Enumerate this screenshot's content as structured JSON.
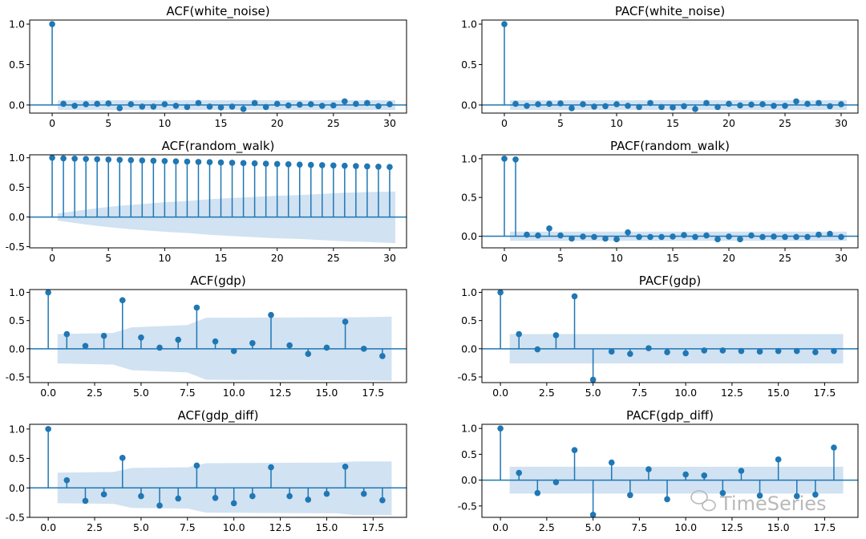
{
  "colors": {
    "stem": "#1f77b4",
    "band": "#c6dbef",
    "axis": "#000000",
    "watermark": "#b9b9b9"
  },
  "watermark": {
    "text": "TimeSeries",
    "icon": "wechat-icon"
  },
  "chart_data": [
    {
      "type": "stem",
      "title": "ACF(white_noise)",
      "xlim": [
        -2,
        31.5
      ],
      "ylim": [
        -0.1,
        1.05
      ],
      "xticks": [
        0,
        5,
        10,
        15,
        20,
        25,
        30
      ],
      "xtick_labels": [
        "0",
        "5",
        "10",
        "15",
        "20",
        "25",
        "30"
      ],
      "yticks": [
        0.0,
        0.5,
        1.0
      ],
      "ytick_labels": [
        "0.0",
        "0.5",
        "1.0"
      ],
      "x": [
        0,
        1,
        2,
        3,
        4,
        5,
        6,
        7,
        8,
        9,
        10,
        11,
        12,
        13,
        14,
        15,
        16,
        17,
        18,
        19,
        20,
        21,
        22,
        23,
        24,
        25,
        26,
        27,
        28,
        29,
        30
      ],
      "values": [
        1.0,
        0.015,
        -0.01,
        0.01,
        0.015,
        0.02,
        -0.04,
        0.01,
        -0.02,
        -0.02,
        0.01,
        -0.01,
        -0.025,
        0.025,
        -0.02,
        -0.03,
        -0.02,
        -0.05,
        0.025,
        -0.025,
        0.015,
        -0.005,
        0.005,
        0.01,
        -0.01,
        -0.005,
        0.045,
        0.015,
        0.025,
        -0.015,
        0.01
      ],
      "band_x": [
        0.5,
        30.5
      ],
      "band_upper": [
        0.06,
        0.06
      ],
      "band_lower": [
        -0.06,
        -0.06
      ]
    },
    {
      "type": "stem",
      "title": "PACF(white_noise)",
      "xlim": [
        -2,
        31.5
      ],
      "ylim": [
        -0.1,
        1.05
      ],
      "xticks": [
        0,
        5,
        10,
        15,
        20,
        25,
        30
      ],
      "xtick_labels": [
        "0",
        "5",
        "10",
        "15",
        "20",
        "25",
        "30"
      ],
      "yticks": [
        0.0,
        0.5,
        1.0
      ],
      "ytick_labels": [
        "0.0",
        "0.5",
        "1.0"
      ],
      "x": [
        0,
        1,
        2,
        3,
        4,
        5,
        6,
        7,
        8,
        9,
        10,
        11,
        12,
        13,
        14,
        15,
        16,
        17,
        18,
        19,
        20,
        21,
        22,
        23,
        24,
        25,
        26,
        27,
        28,
        29,
        30
      ],
      "values": [
        1.0,
        0.015,
        -0.01,
        0.01,
        0.015,
        0.02,
        -0.04,
        0.01,
        -0.02,
        -0.015,
        0.01,
        -0.01,
        -0.025,
        0.025,
        -0.025,
        -0.03,
        -0.015,
        -0.05,
        0.025,
        -0.025,
        0.015,
        -0.005,
        0.005,
        0.01,
        -0.01,
        -0.01,
        0.045,
        0.015,
        0.025,
        -0.015,
        0.01
      ],
      "band_x": [
        0.5,
        30.5
      ],
      "band_upper": [
        0.06,
        0.06
      ],
      "band_lower": [
        -0.06,
        -0.06
      ]
    },
    {
      "type": "stem",
      "title": "ACF(random_walk)",
      "xlim": [
        -2,
        31.5
      ],
      "ylim": [
        -0.52,
        1.05
      ],
      "xticks": [
        0,
        5,
        10,
        15,
        20,
        25,
        30
      ],
      "xtick_labels": [
        "0",
        "5",
        "10",
        "15",
        "20",
        "25",
        "30"
      ],
      "yticks": [
        -0.5,
        0.0,
        0.5,
        1.0
      ],
      "ytick_labels": [
        "-0.5",
        "0.0",
        "0.5",
        "1.0"
      ],
      "x": [
        0,
        1,
        2,
        3,
        4,
        5,
        6,
        7,
        8,
        9,
        10,
        11,
        12,
        13,
        14,
        15,
        16,
        17,
        18,
        19,
        20,
        21,
        22,
        23,
        24,
        25,
        26,
        27,
        28,
        29,
        30
      ],
      "values": [
        1.0,
        0.99,
        0.985,
        0.98,
        0.975,
        0.97,
        0.965,
        0.96,
        0.955,
        0.95,
        0.945,
        0.94,
        0.935,
        0.93,
        0.925,
        0.92,
        0.915,
        0.91,
        0.905,
        0.9,
        0.895,
        0.89,
        0.885,
        0.88,
        0.875,
        0.87,
        0.865,
        0.86,
        0.855,
        0.85,
        0.845
      ],
      "band_x": [
        0.5,
        2,
        4,
        6,
        8,
        10,
        12,
        14,
        16,
        18,
        20,
        22,
        24,
        26,
        28,
        30.5
      ],
      "band_upper": [
        0.06,
        0.1,
        0.15,
        0.19,
        0.22,
        0.25,
        0.27,
        0.3,
        0.32,
        0.34,
        0.36,
        0.37,
        0.39,
        0.41,
        0.42,
        0.43
      ],
      "band_lower": [
        -0.06,
        -0.1,
        -0.15,
        -0.19,
        -0.22,
        -0.25,
        -0.27,
        -0.3,
        -0.32,
        -0.34,
        -0.36,
        -0.37,
        -0.39,
        -0.41,
        -0.42,
        -0.44
      ]
    },
    {
      "type": "stem",
      "title": "PACF(random_walk)",
      "xlim": [
        -2,
        31.5
      ],
      "ylim": [
        -0.15,
        1.05
      ],
      "xticks": [
        0,
        5,
        10,
        15,
        20,
        25,
        30
      ],
      "xtick_labels": [
        "0",
        "5",
        "10",
        "15",
        "20",
        "25",
        "30"
      ],
      "yticks": [
        0.0,
        0.5,
        1.0
      ],
      "ytick_labels": [
        "0.0",
        "0.5",
        "1.0"
      ],
      "x": [
        0,
        1,
        2,
        3,
        4,
        5,
        6,
        7,
        8,
        9,
        10,
        11,
        12,
        13,
        14,
        15,
        16,
        17,
        18,
        19,
        20,
        21,
        22,
        23,
        24,
        25,
        26,
        27,
        28,
        29,
        30
      ],
      "values": [
        1.0,
        0.99,
        0.02,
        0.01,
        0.1,
        0.01,
        -0.03,
        -0.005,
        -0.01,
        -0.03,
        -0.04,
        0.05,
        -0.01,
        -0.01,
        -0.01,
        -0.005,
        0.015,
        -0.01,
        0.01,
        -0.04,
        -0.005,
        -0.04,
        0.01,
        -0.01,
        -0.005,
        -0.01,
        -0.01,
        -0.01,
        0.02,
        0.03,
        -0.01
      ],
      "band_x": [
        0.5,
        30.5
      ],
      "band_upper": [
        0.06,
        0.06
      ],
      "band_lower": [
        -0.06,
        -0.06
      ]
    },
    {
      "type": "stem",
      "title": "ACF(gdp)",
      "xlim": [
        -1.0,
        19.3
      ],
      "ylim": [
        -0.6,
        1.05
      ],
      "xticks": [
        0,
        2.5,
        5,
        7.5,
        10,
        12.5,
        15,
        17.5
      ],
      "xtick_labels": [
        "0.0",
        "2.5",
        "5.0",
        "7.5",
        "10.0",
        "12.5",
        "15.0",
        "17.5"
      ],
      "yticks": [
        -0.5,
        0.0,
        0.5,
        1.0
      ],
      "ytick_labels": [
        "-0.5",
        "0.0",
        "0.5",
        "1.0"
      ],
      "x": [
        0,
        1,
        2,
        3,
        4,
        5,
        6,
        7,
        8,
        9,
        10,
        11,
        12,
        13,
        14,
        15,
        16,
        17,
        18
      ],
      "values": [
        1.0,
        0.26,
        0.05,
        0.23,
        0.86,
        0.2,
        0.02,
        0.16,
        0.73,
        0.13,
        -0.04,
        0.1,
        0.6,
        0.06,
        -0.09,
        0.02,
        0.48,
        0.0,
        -0.13
      ],
      "band_x": [
        0.5,
        3.5,
        4.5,
        7.5,
        8.5,
        17,
        18.5
      ],
      "band_upper": [
        0.26,
        0.28,
        0.38,
        0.42,
        0.55,
        0.56,
        0.57
      ],
      "band_lower": [
        -0.26,
        -0.28,
        -0.38,
        -0.42,
        -0.55,
        -0.56,
        -0.57
      ]
    },
    {
      "type": "stem",
      "title": "PACF(gdp)",
      "xlim": [
        -1.0,
        19.3
      ],
      "ylim": [
        -0.6,
        1.05
      ],
      "xticks": [
        0,
        2.5,
        5,
        7.5,
        10,
        12.5,
        15,
        17.5
      ],
      "xtick_labels": [
        "0.0",
        "2.5",
        "5.0",
        "7.5",
        "10.0",
        "12.5",
        "15.0",
        "17.5"
      ],
      "yticks": [
        -0.5,
        0.0,
        0.5,
        1.0
      ],
      "ytick_labels": [
        "-0.5",
        "0.0",
        "0.5",
        "1.0"
      ],
      "x": [
        0,
        1,
        2,
        3,
        4,
        5,
        6,
        7,
        8,
        9,
        10,
        11,
        12,
        13,
        14,
        15,
        16,
        17,
        18
      ],
      "values": [
        1.0,
        0.26,
        -0.01,
        0.24,
        0.93,
        -0.55,
        -0.05,
        -0.09,
        0.01,
        -0.06,
        -0.08,
        -0.03,
        -0.03,
        -0.04,
        -0.05,
        -0.04,
        -0.04,
        -0.06,
        -0.04
      ],
      "band_x": [
        0.5,
        18.5
      ],
      "band_upper": [
        0.26,
        0.26
      ],
      "band_lower": [
        -0.26,
        -0.26
      ]
    },
    {
      "type": "stem",
      "title": "ACF(gdp_diff)",
      "xlim": [
        -1.0,
        19.3
      ],
      "ylim": [
        -0.5,
        1.08
      ],
      "xticks": [
        0,
        2.5,
        5,
        7.5,
        10,
        12.5,
        15,
        17.5
      ],
      "xtick_labels": [
        "0.0",
        "2.5",
        "5.0",
        "7.5",
        "10.0",
        "12.5",
        "15.0",
        "17.5"
      ],
      "yticks": [
        -0.5,
        0.0,
        0.5,
        1.0
      ],
      "ytick_labels": [
        "-0.5",
        "0.0",
        "0.5",
        "1.0"
      ],
      "x": [
        0,
        1,
        2,
        3,
        4,
        5,
        6,
        7,
        8,
        9,
        10,
        11,
        12,
        13,
        14,
        15,
        16,
        17,
        18
      ],
      "values": [
        1.0,
        0.13,
        -0.22,
        -0.11,
        0.51,
        -0.14,
        -0.3,
        -0.18,
        0.38,
        -0.17,
        -0.26,
        -0.14,
        0.35,
        -0.14,
        -0.2,
        -0.1,
        0.36,
        -0.1,
        -0.21
      ],
      "band_x": [
        0.5,
        3.5,
        4.5,
        7.5,
        8.5,
        15.5,
        16.5,
        18.5
      ],
      "band_upper": [
        0.26,
        0.27,
        0.34,
        0.35,
        0.42,
        0.43,
        0.45,
        0.45
      ],
      "band_lower": [
        -0.26,
        -0.27,
        -0.34,
        -0.35,
        -0.42,
        -0.43,
        -0.46,
        -0.46
      ]
    },
    {
      "type": "stem",
      "title": "PACF(gdp_diff)",
      "xlim": [
        -1.0,
        19.3
      ],
      "ylim": [
        -0.72,
        1.08
      ],
      "xticks": [
        0,
        2.5,
        5,
        7.5,
        10,
        12.5,
        15,
        17.5
      ],
      "xtick_labels": [
        "0.0",
        "2.5",
        "5.0",
        "7.5",
        "10.0",
        "12.5",
        "15.0",
        "17.5"
      ],
      "yticks": [
        -0.5,
        0.0,
        0.5,
        1.0
      ],
      "ytick_labels": [
        "-0.5",
        "0.0",
        "0.5",
        "1.0"
      ],
      "x": [
        0,
        1,
        2,
        3,
        4,
        5,
        6,
        7,
        8,
        9,
        10,
        11,
        12,
        13,
        14,
        15,
        16,
        17,
        18
      ],
      "values": [
        1.0,
        0.14,
        -0.25,
        -0.04,
        0.58,
        -0.67,
        0.34,
        -0.29,
        0.21,
        -0.37,
        0.11,
        0.09,
        -0.25,
        0.18,
        -0.3,
        0.4,
        -0.31,
        -0.28,
        0.63
      ],
      "band_x": [
        0.5,
        18.5
      ],
      "band_upper": [
        0.26,
        0.26
      ],
      "band_lower": [
        -0.26,
        -0.26
      ]
    }
  ]
}
